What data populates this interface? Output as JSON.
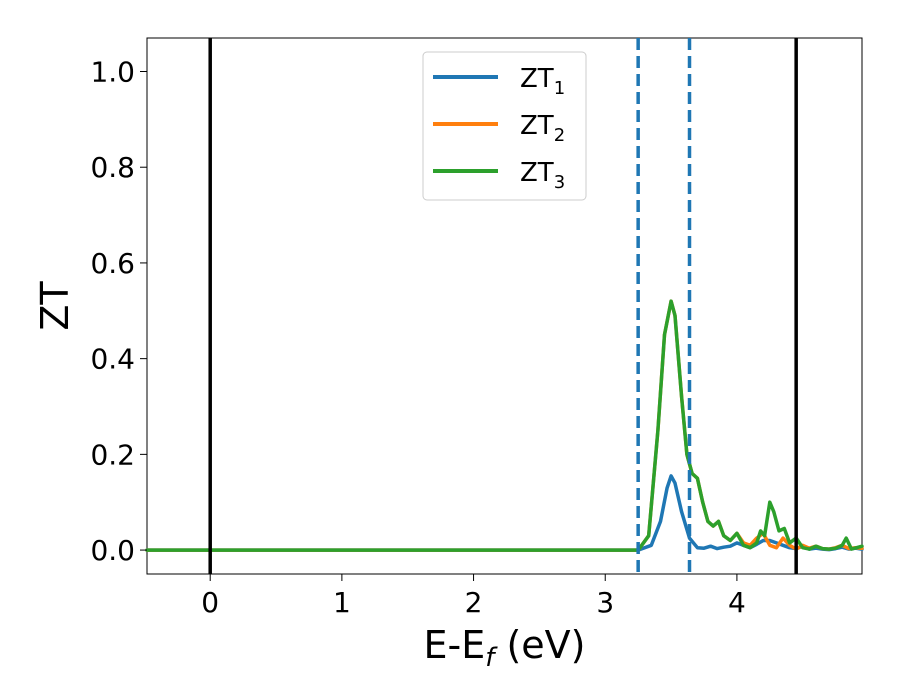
{
  "chart_data": {
    "type": "line",
    "title": "",
    "xlabel": {
      "main": "E-E",
      "sub": "f",
      "suffix": " (eV)"
    },
    "ylabel": "ZT",
    "xlim": [
      -0.48,
      4.95
    ],
    "ylim": [
      -0.05,
      1.07
    ],
    "xticks": [
      0,
      1,
      2,
      3,
      4
    ],
    "xtick_labels": [
      "0",
      "1",
      "2",
      "3",
      "4"
    ],
    "yticks": [
      0.0,
      0.2,
      0.4,
      0.6,
      0.8,
      1.0
    ],
    "ytick_labels": [
      "0.0",
      "0.2",
      "0.4",
      "0.6",
      "0.8",
      "1.0"
    ],
    "grid": false,
    "legend_position": "top-center",
    "vlines": [
      {
        "x": 0.0,
        "style": "solid",
        "color": "#000000"
      },
      {
        "x": 4.45,
        "style": "solid",
        "color": "#000000"
      },
      {
        "x": 3.25,
        "style": "dashed",
        "color": "#1f77b4"
      },
      {
        "x": 3.64,
        "style": "dashed",
        "color": "#1f77b4"
      }
    ],
    "series": [
      {
        "name": "ZT",
        "name_sub": "1",
        "color": "#1f77b4",
        "x": [
          -0.48,
          3.0,
          3.25,
          3.35,
          3.42,
          3.47,
          3.5,
          3.53,
          3.58,
          3.64,
          3.7,
          3.75,
          3.8,
          3.85,
          3.9,
          3.95,
          4.0,
          4.05,
          4.1,
          4.15,
          4.2,
          4.25,
          4.3,
          4.35,
          4.4,
          4.45,
          4.5,
          4.55,
          4.6,
          4.65,
          4.7,
          4.75,
          4.8,
          4.85,
          4.9,
          4.95
        ],
        "y": [
          0.0,
          0.0,
          0.0,
          0.01,
          0.06,
          0.13,
          0.155,
          0.14,
          0.08,
          0.025,
          0.005,
          0.004,
          0.008,
          0.003,
          0.006,
          0.008,
          0.015,
          0.01,
          0.005,
          0.012,
          0.02,
          0.02,
          0.015,
          0.01,
          0.005,
          0.003,
          0.008,
          0.002,
          0.004,
          0.002,
          0.001,
          0.003,
          0.006,
          0.002,
          0.004,
          0.002
        ]
      },
      {
        "name": "ZT",
        "name_sub": "2",
        "color": "#ff7f0e",
        "x": [
          -0.48,
          3.0,
          3.25,
          3.33,
          3.4,
          3.45,
          3.5,
          3.53,
          3.58,
          3.62,
          3.66,
          3.7,
          3.74,
          3.78,
          3.82,
          3.86,
          3.9,
          3.95,
          4.0,
          4.05,
          4.1,
          4.15,
          4.2,
          4.25,
          4.3,
          4.35,
          4.4,
          4.45,
          4.5,
          4.55,
          4.6,
          4.65,
          4.7,
          4.75,
          4.8,
          4.85,
          4.9,
          4.95
        ],
        "y": [
          0.0,
          0.0,
          0.0,
          0.03,
          0.25,
          0.45,
          0.52,
          0.49,
          0.32,
          0.2,
          0.16,
          0.15,
          0.1,
          0.06,
          0.05,
          0.06,
          0.03,
          0.02,
          0.035,
          0.015,
          0.01,
          0.025,
          0.035,
          0.01,
          0.005,
          0.025,
          0.01,
          0.002,
          0.01,
          0.004,
          0.008,
          0.003,
          0.002,
          0.005,
          0.01,
          0.003,
          0.005,
          0.004
        ]
      },
      {
        "name": "ZT",
        "name_sub": "3",
        "color": "#2ca02c",
        "x": [
          -0.48,
          3.0,
          3.25,
          3.33,
          3.4,
          3.45,
          3.5,
          3.53,
          3.58,
          3.62,
          3.66,
          3.7,
          3.74,
          3.78,
          3.82,
          3.86,
          3.9,
          3.95,
          4.0,
          4.05,
          4.1,
          4.15,
          4.18,
          4.21,
          4.25,
          4.28,
          4.32,
          4.36,
          4.4,
          4.45,
          4.5,
          4.55,
          4.6,
          4.65,
          4.7,
          4.75,
          4.8,
          4.83,
          4.87,
          4.95
        ],
        "y": [
          0.0,
          0.0,
          0.0,
          0.03,
          0.25,
          0.45,
          0.52,
          0.49,
          0.32,
          0.2,
          0.16,
          0.15,
          0.1,
          0.06,
          0.05,
          0.06,
          0.03,
          0.02,
          0.035,
          0.01,
          0.005,
          0.015,
          0.04,
          0.03,
          0.1,
          0.08,
          0.04,
          0.045,
          0.015,
          0.025,
          0.005,
          0.002,
          0.008,
          0.003,
          0.002,
          0.004,
          0.01,
          0.025,
          0.002,
          0.008
        ]
      }
    ]
  }
}
